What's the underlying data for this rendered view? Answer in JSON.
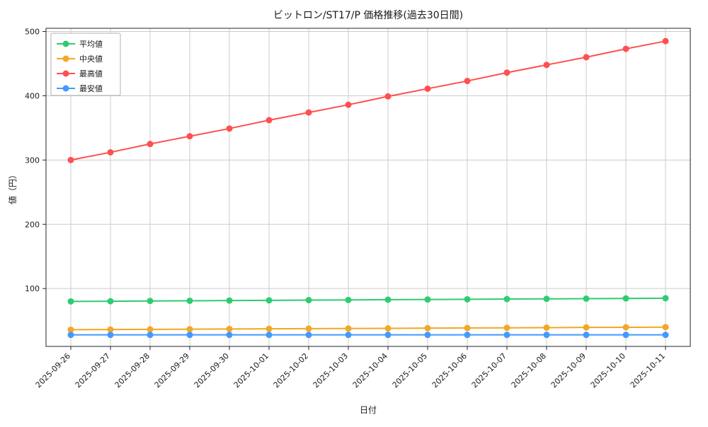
{
  "chart_data": {
    "type": "line",
    "title": "ビットロン/ST17/P 価格推移(過去30日間)",
    "xlabel": "日付",
    "ylabel": "値（円）",
    "x": [
      "2025-09-26",
      "2025-09-27",
      "2025-09-28",
      "2025-09-29",
      "2025-09-30",
      "2025-10-01",
      "2025-10-02",
      "2025-10-03",
      "2025-10-04",
      "2025-10-05",
      "2025-10-06",
      "2025-10-07",
      "2025-10-08",
      "2025-10-09",
      "2025-10-10",
      "2025-10-11"
    ],
    "series": [
      {
        "name": "平均値",
        "color": "#2ecc71",
        "values": [
          80.0,
          80.3,
          80.7,
          81.0,
          81.3,
          81.7,
          82.0,
          82.3,
          82.7,
          83.0,
          83.3,
          83.7,
          84.0,
          84.3,
          84.7,
          85.0
        ]
      },
      {
        "name": "中央値",
        "color": "#f5a623",
        "values": [
          36.0,
          36.3,
          36.5,
          36.8,
          37.1,
          37.3,
          37.6,
          37.9,
          38.1,
          38.4,
          38.7,
          38.9,
          39.2,
          39.5,
          39.7,
          40.0
        ]
      },
      {
        "name": "最高値",
        "color": "#ff5050",
        "values": [
          300,
          312,
          325,
          337,
          349,
          362,
          374,
          386,
          399,
          411,
          423,
          436,
          448,
          460,
          473,
          485
        ]
      },
      {
        "name": "最安値",
        "color": "#4499ff",
        "values": [
          28,
          28,
          28,
          28,
          28,
          28,
          28,
          28,
          28,
          28,
          28,
          28,
          28,
          28,
          28,
          28
        ]
      }
    ],
    "ylim": [
      10,
      505
    ],
    "yticks": [
      100,
      200,
      300,
      400,
      500
    ],
    "grid": true,
    "legend_position": "upper-left",
    "grid_color": "#cccccc",
    "axis_color": "#262626"
  }
}
